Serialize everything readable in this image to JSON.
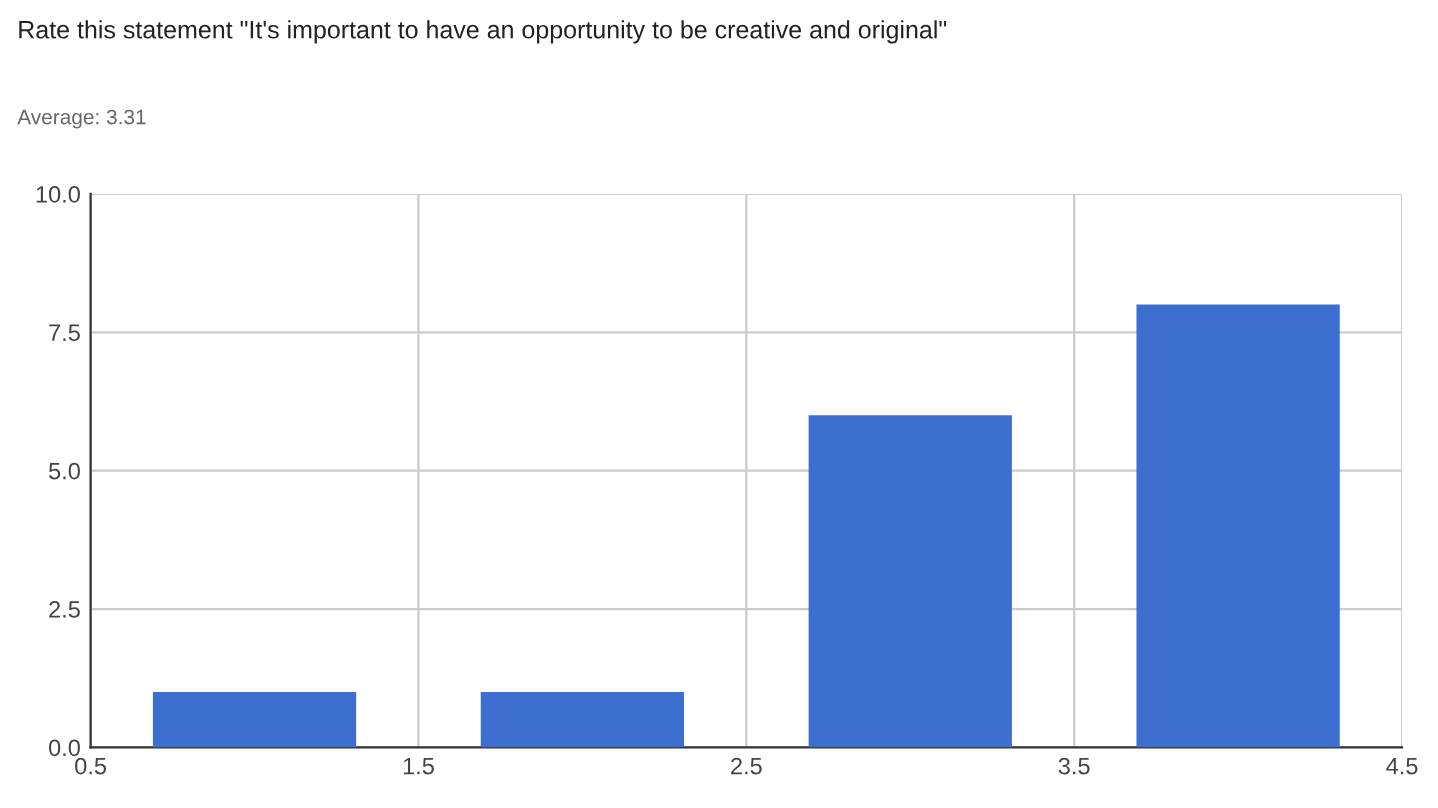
{
  "chart_data": {
    "type": "bar",
    "title": "Rate this statement \"It's important to have an opportunity to be creative and original\"",
    "subtitle": "Average: 3.31",
    "x": [
      1,
      2,
      3,
      4
    ],
    "series": [
      {
        "color": "#3c6fd0",
        "values": [
          1,
          1,
          6,
          8
        ]
      }
    ],
    "xlim": [
      0.5,
      4.5
    ],
    "xticks": [
      0.5,
      1.5,
      2.5,
      3.5,
      4.5
    ],
    "ylim": [
      0,
      10
    ],
    "yticks": [
      {
        "value": 0,
        "label": "0.0"
      },
      2.5,
      {
        "value": 5,
        "label": "5.0"
      },
      7.5,
      {
        "value": 10,
        "label": "10.0"
      }
    ],
    "grid": true
  }
}
